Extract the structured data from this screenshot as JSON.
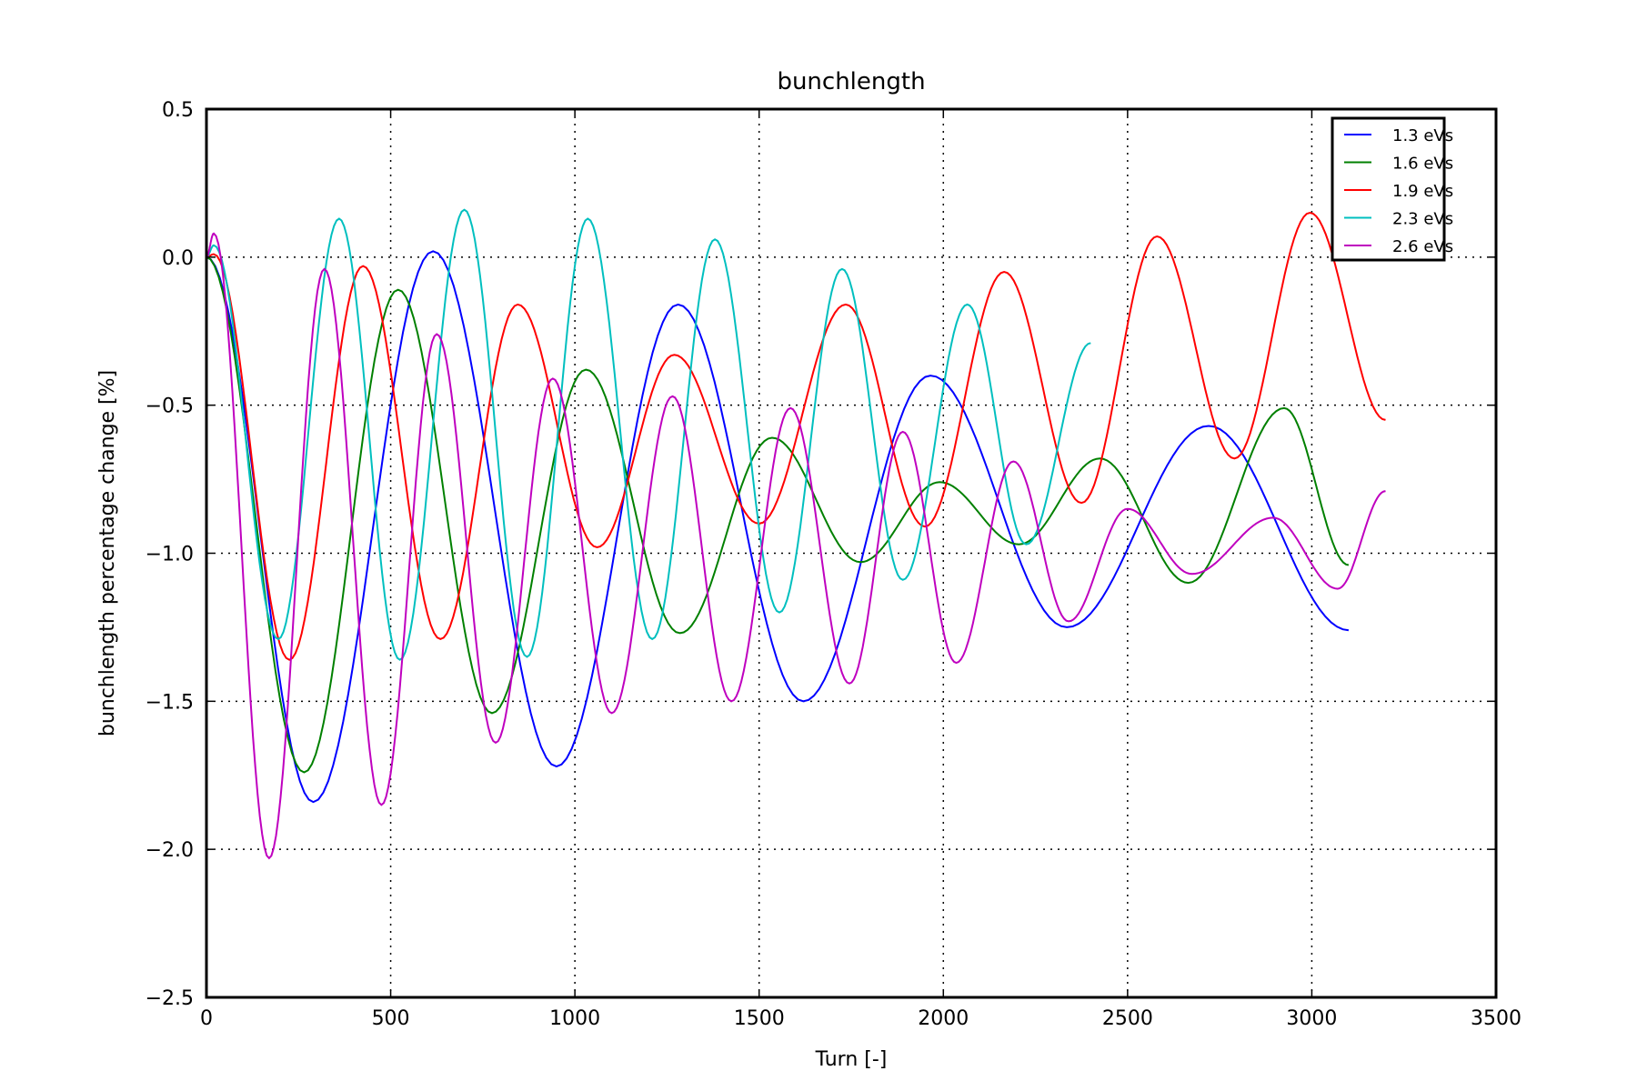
{
  "chart_data": {
    "type": "line",
    "title": "bunchlength",
    "xlabel": "Turn [-]",
    "ylabel": "bunchlength percentage change [%]",
    "xlim": [
      0,
      3500
    ],
    "ylim": [
      -2.5,
      0.5
    ],
    "xticks": [
      0,
      500,
      1000,
      1500,
      2000,
      2500,
      3000,
      3500
    ],
    "xtick_labels": [
      "0",
      "500",
      "1000",
      "1500",
      "2000",
      "2500",
      "3000",
      "3500"
    ],
    "yticks": [
      -2.5,
      -2.0,
      -1.5,
      -1.0,
      -0.5,
      0.0,
      0.5
    ],
    "ytick_labels": [
      "−2.5",
      "−2.0",
      "−1.5",
      "−1.0",
      "−0.5",
      "0.0",
      "0.5"
    ],
    "grid": true,
    "legend_position": "top-right",
    "series": [
      {
        "name": "1.3 eVs",
        "color": "#0000ff",
        "points": [
          [
            0,
            0.0
          ],
          [
            290,
            -1.84
          ],
          [
            615,
            0.02
          ],
          [
            950,
            -1.72
          ],
          [
            1280,
            -0.16
          ],
          [
            1620,
            -1.5
          ],
          [
            1965,
            -0.4
          ],
          [
            2335,
            -1.25
          ],
          [
            2720,
            -0.57
          ],
          [
            3100,
            -1.26
          ]
        ]
      },
      {
        "name": "1.6 eVs",
        "color": "#008000",
        "points": [
          [
            0,
            0.0
          ],
          [
            265,
            -1.74
          ],
          [
            520,
            -0.11
          ],
          [
            775,
            -1.54
          ],
          [
            1030,
            -0.38
          ],
          [
            1285,
            -1.27
          ],
          [
            1535,
            -0.61
          ],
          [
            1775,
            -1.03
          ],
          [
            1990,
            -0.76
          ],
          [
            2205,
            -0.97
          ],
          [
            2425,
            -0.68
          ],
          [
            2665,
            -1.1
          ],
          [
            2925,
            -0.51
          ],
          [
            3100,
            -1.04
          ]
        ]
      },
      {
        "name": "1.9 eVs",
        "color": "#ff0000",
        "points": [
          [
            0,
            0.0
          ],
          [
            20,
            0.01
          ],
          [
            225,
            -1.36
          ],
          [
            425,
            -0.03
          ],
          [
            635,
            -1.29
          ],
          [
            845,
            -0.16
          ],
          [
            1060,
            -0.98
          ],
          [
            1270,
            -0.33
          ],
          [
            1500,
            -0.9
          ],
          [
            1735,
            -0.16
          ],
          [
            1950,
            -0.91
          ],
          [
            2165,
            -0.05
          ],
          [
            2375,
            -0.83
          ],
          [
            2580,
            0.07
          ],
          [
            2790,
            -0.68
          ],
          [
            2995,
            0.15
          ],
          [
            3200,
            -0.55
          ]
        ]
      },
      {
        "name": "2.3 eVs",
        "color": "#00bfbf",
        "points": [
          [
            0,
            0.0
          ],
          [
            20,
            0.04
          ],
          [
            195,
            -1.29
          ],
          [
            360,
            0.13
          ],
          [
            525,
            -1.36
          ],
          [
            700,
            0.16
          ],
          [
            870,
            -1.35
          ],
          [
            1035,
            0.13
          ],
          [
            1210,
            -1.29
          ],
          [
            1380,
            0.06
          ],
          [
            1555,
            -1.2
          ],
          [
            1725,
            -0.04
          ],
          [
            1890,
            -1.09
          ],
          [
            2065,
            -0.16
          ],
          [
            2225,
            -0.97
          ],
          [
            2400,
            -0.29
          ]
        ]
      },
      {
        "name": "2.6 eVs",
        "color": "#bf00bf",
        "points": [
          [
            0,
            0.0
          ],
          [
            20,
            0.08
          ],
          [
            170,
            -2.03
          ],
          [
            320,
            -0.04
          ],
          [
            475,
            -1.85
          ],
          [
            625,
            -0.26
          ],
          [
            785,
            -1.64
          ],
          [
            940,
            -0.41
          ],
          [
            1100,
            -1.54
          ],
          [
            1265,
            -0.47
          ],
          [
            1425,
            -1.5
          ],
          [
            1585,
            -0.51
          ],
          [
            1745,
            -1.44
          ],
          [
            1890,
            -0.59
          ],
          [
            2035,
            -1.37
          ],
          [
            2190,
            -0.69
          ],
          [
            2340,
            -1.23
          ],
          [
            2500,
            -0.85
          ],
          [
            2675,
            -1.07
          ],
          [
            2895,
            -0.88
          ],
          [
            3070,
            -1.12
          ],
          [
            3200,
            -0.79
          ]
        ]
      }
    ]
  }
}
